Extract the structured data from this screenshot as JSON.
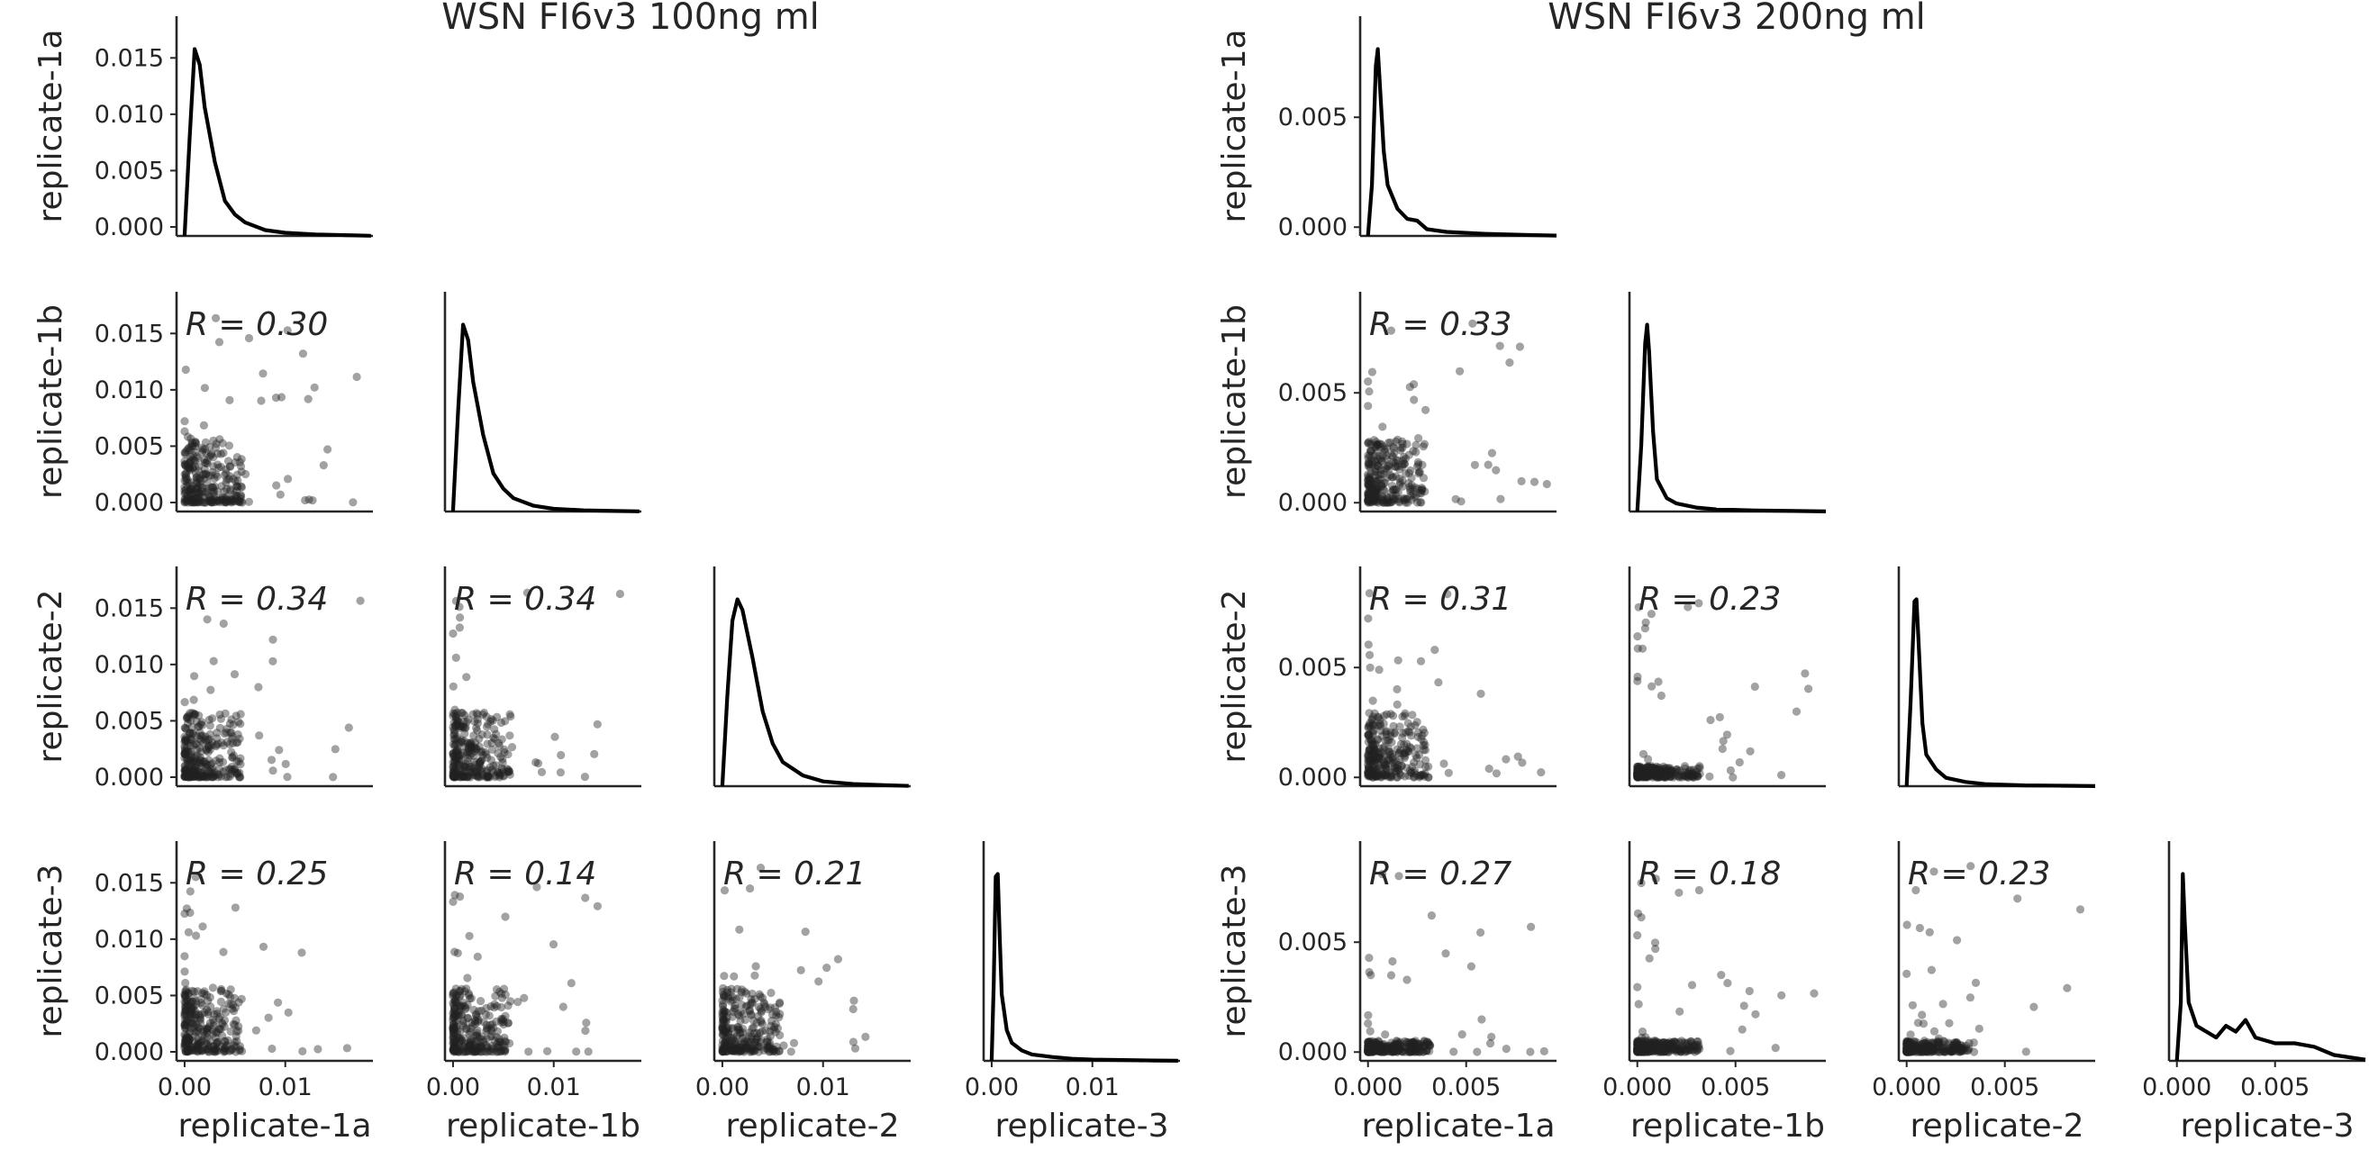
{
  "replicates": [
    "replicate-1a",
    "replicate-1b",
    "replicate-2",
    "replicate-3"
  ],
  "chart_data": [
    {
      "type": "scatter",
      "title": "WSN FI6v3 100ng ml",
      "xlabels": [
        "replicate-1a",
        "replicate-1b",
        "replicate-2",
        "replicate-3"
      ],
      "ylabels": [
        "replicate-1a",
        "replicate-1b",
        "replicate-2",
        "replicate-3"
      ],
      "lim": [
        -0.0008,
        0.0187
      ],
      "yticks": [
        "0.000",
        "0.005",
        "0.010",
        "0.015"
      ],
      "ytick_values": [
        0,
        0.005,
        0.01,
        0.015
      ],
      "xticks": [
        "0.00",
        "0.01"
      ],
      "xtick_values": [
        0,
        0.01
      ],
      "correlations": [
        {
          "row": 1,
          "col": 0,
          "label": "R = 0.30"
        },
        {
          "row": 2,
          "col": 0,
          "label": "R = 0.34"
        },
        {
          "row": 2,
          "col": 1,
          "label": "R = 0.34"
        },
        {
          "row": 3,
          "col": 0,
          "label": "R = 0.25"
        },
        {
          "row": 3,
          "col": 1,
          "label": "R = 0.14"
        },
        {
          "row": 3,
          "col": 2,
          "label": "R = 0.21"
        }
      ],
      "diagonal_kde": [
        {
          "x": [
            0,
            0.0005,
            0.001,
            0.0015,
            0.002,
            0.003,
            0.004,
            0.005,
            0.006,
            0.008,
            0.01,
            0.013,
            0.016,
            0.0185
          ],
          "density": [
            0,
            2500,
            4800,
            4400,
            3300,
            1900,
            900,
            550,
            350,
            150,
            80,
            40,
            20,
            5
          ]
        },
        {
          "x": [
            0,
            0.0005,
            0.001,
            0.0015,
            0.002,
            0.003,
            0.004,
            0.005,
            0.006,
            0.008,
            0.01,
            0.013,
            0.016,
            0.0185
          ],
          "density": [
            0,
            2600,
            4900,
            4500,
            3400,
            2000,
            1000,
            600,
            350,
            150,
            70,
            30,
            15,
            5
          ]
        },
        {
          "x": [
            0,
            0.0005,
            0.001,
            0.0015,
            0.002,
            0.003,
            0.004,
            0.005,
            0.006,
            0.008,
            0.01,
            0.013,
            0.016,
            0.0185
          ],
          "density": [
            0,
            1700,
            3100,
            3500,
            3300,
            2400,
            1400,
            800,
            450,
            200,
            90,
            40,
            20,
            5
          ]
        },
        {
          "x": [
            0,
            0.0002,
            0.0004,
            0.0006,
            0.0008,
            0.001,
            0.0015,
            0.002,
            0.003,
            0.004,
            0.006,
            0.008,
            0.01,
            0.013,
            0.016,
            0.0185
          ],
          "density": [
            0,
            3000,
            7200,
            7300,
            4800,
            2600,
            1200,
            700,
            400,
            250,
            150,
            80,
            50,
            30,
            15,
            5
          ]
        }
      ]
    },
    {
      "type": "scatter",
      "title": "WSN FI6v3 200ng ml",
      "xlabels": [
        "replicate-1a",
        "replicate-1b",
        "replicate-2",
        "replicate-3"
      ],
      "ylabels": [
        "replicate-1a",
        "replicate-1b",
        "replicate-2",
        "replicate-3"
      ],
      "lim": [
        -0.0004,
        0.0096
      ],
      "yticks": [
        "0.000",
        "0.005"
      ],
      "ytick_values": [
        0,
        0.005
      ],
      "xticks": [
        "0.000",
        "0.005"
      ],
      "xtick_values": [
        0,
        0.005
      ],
      "correlations": [
        {
          "row": 1,
          "col": 0,
          "label": "R = 0.33"
        },
        {
          "row": 2,
          "col": 0,
          "label": "R = 0.31"
        },
        {
          "row": 2,
          "col": 1,
          "label": "R = 0.23"
        },
        {
          "row": 3,
          "col": 0,
          "label": "R = 0.27"
        },
        {
          "row": 3,
          "col": 1,
          "label": "R = 0.18"
        },
        {
          "row": 3,
          "col": 2,
          "label": "R = 0.23"
        }
      ],
      "diagonal_kde": [
        {
          "x": [
            0,
            0.0002,
            0.0004,
            0.0005,
            0.0006,
            0.0008,
            0.001,
            0.0015,
            0.002,
            0.0025,
            0.003,
            0.004,
            0.006,
            0.008,
            0.0096
          ],
          "density": [
            0,
            1500,
            5000,
            5500,
            4500,
            2500,
            1500,
            800,
            500,
            450,
            200,
            120,
            60,
            30,
            10
          ]
        },
        {
          "x": [
            0,
            0.0002,
            0.0004,
            0.0005,
            0.0006,
            0.0008,
            0.001,
            0.0015,
            0.002,
            0.003,
            0.004,
            0.006,
            0.008,
            0.0096
          ],
          "density": [
            0,
            2500,
            6300,
            7000,
            6000,
            3000,
            1200,
            500,
            300,
            150,
            80,
            40,
            20,
            5
          ]
        },
        {
          "x": [
            0,
            0.0002,
            0.0004,
            0.0005,
            0.0006,
            0.0008,
            0.001,
            0.0015,
            0.002,
            0.003,
            0.004,
            0.006,
            0.008,
            0.0096
          ],
          "density": [
            0,
            4000,
            8800,
            8900,
            7000,
            3000,
            1500,
            800,
            400,
            200,
            100,
            40,
            20,
            5
          ]
        },
        {
          "x": [
            0,
            0.0002,
            0.0003,
            0.0004,
            0.0006,
            0.001,
            0.0015,
            0.002,
            0.0025,
            0.003,
            0.0035,
            0.004,
            0.005,
            0.006,
            0.007,
            0.008,
            0.0096
          ],
          "density": [
            0,
            500,
            1600,
            1200,
            500,
            300,
            250,
            200,
            300,
            250,
            350,
            200,
            150,
            150,
            120,
            50,
            10
          ]
        }
      ]
    }
  ]
}
